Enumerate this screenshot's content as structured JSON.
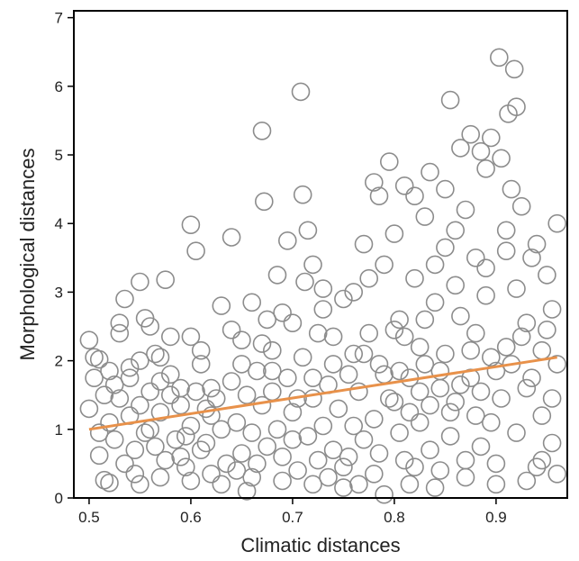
{
  "chart_data": {
    "type": "scatter",
    "title": "",
    "xlabel": "Climatic distances",
    "ylabel": "Morphological  distances",
    "xlim": [
      0.485,
      0.97
    ],
    "ylim": [
      0,
      7.1
    ],
    "xticks": [
      "0.5",
      "0.6",
      "0.7",
      "0.8",
      "0.9"
    ],
    "yticks": [
      "0",
      "1",
      "2",
      "3",
      "4",
      "5",
      "6",
      "7"
    ],
    "grid": false,
    "legend": "none",
    "marker": {
      "shape": "open-circle",
      "color": "#8c8c8c"
    },
    "points": [
      [
        0.5,
        2.3
      ],
      [
        0.505,
        2.05
      ],
      [
        0.51,
        2.02
      ],
      [
        0.5,
        1.3
      ],
      [
        0.51,
        0.62
      ],
      [
        0.515,
        0.26
      ],
      [
        0.52,
        0.22
      ],
      [
        0.525,
        1.65
      ],
      [
        0.53,
        2.55
      ],
      [
        0.53,
        2.4
      ],
      [
        0.535,
        2.9
      ],
      [
        0.54,
        1.9
      ],
      [
        0.545,
        0.35
      ],
      [
        0.55,
        3.15
      ],
      [
        0.555,
        2.62
      ],
      [
        0.56,
        2.5
      ],
      [
        0.56,
        1.0
      ],
      [
        0.565,
        2.1
      ],
      [
        0.57,
        1.7
      ],
      [
        0.575,
        3.18
      ],
      [
        0.58,
        1.5
      ],
      [
        0.59,
        0.6
      ],
      [
        0.595,
        0.9
      ],
      [
        0.6,
        3.98
      ],
      [
        0.6,
        2.35
      ],
      [
        0.605,
        3.6
      ],
      [
        0.61,
        1.95
      ],
      [
        0.615,
        0.8
      ],
      [
        0.62,
        1.2
      ],
      [
        0.63,
        2.8
      ],
      [
        0.64,
        3.8
      ],
      [
        0.645,
        0.4
      ],
      [
        0.65,
        2.3
      ],
      [
        0.655,
        0.1
      ],
      [
        0.66,
        2.85
      ],
      [
        0.665,
        0.5
      ],
      [
        0.67,
        5.35
      ],
      [
        0.672,
        4.32
      ],
      [
        0.675,
        2.6
      ],
      [
        0.68,
        1.55
      ],
      [
        0.685,
        3.25
      ],
      [
        0.69,
        2.7
      ],
      [
        0.695,
        3.75
      ],
      [
        0.7,
        0.85
      ],
      [
        0.705,
        1.45
      ],
      [
        0.708,
        5.92
      ],
      [
        0.71,
        4.42
      ],
      [
        0.712,
        3.15
      ],
      [
        0.715,
        3.9
      ],
      [
        0.72,
        3.4
      ],
      [
        0.725,
        2.4
      ],
      [
        0.73,
        3.05
      ],
      [
        0.735,
        0.3
      ],
      [
        0.74,
        1.95
      ],
      [
        0.75,
        2.9
      ],
      [
        0.755,
        0.6
      ],
      [
        0.76,
        2.1
      ],
      [
        0.765,
        0.2
      ],
      [
        0.77,
        3.7
      ],
      [
        0.775,
        3.2
      ],
      [
        0.78,
        4.6
      ],
      [
        0.785,
        4.4
      ],
      [
        0.79,
        0.05
      ],
      [
        0.795,
        4.9
      ],
      [
        0.8,
        3.85
      ],
      [
        0.805,
        2.6
      ],
      [
        0.81,
        4.55
      ],
      [
        0.815,
        0.2
      ],
      [
        0.82,
        4.4
      ],
      [
        0.825,
        2.2
      ],
      [
        0.83,
        4.1
      ],
      [
        0.835,
        4.75
      ],
      [
        0.84,
        3.4
      ],
      [
        0.845,
        0.4
      ],
      [
        0.85,
        4.5
      ],
      [
        0.855,
        5.8
      ],
      [
        0.86,
        3.9
      ],
      [
        0.865,
        5.1
      ],
      [
        0.87,
        4.2
      ],
      [
        0.875,
        5.3
      ],
      [
        0.88,
        1.2
      ],
      [
        0.885,
        5.05
      ],
      [
        0.89,
        4.8
      ],
      [
        0.895,
        5.25
      ],
      [
        0.9,
        0.5
      ],
      [
        0.903,
        6.42
      ],
      [
        0.905,
        4.95
      ],
      [
        0.91,
        3.6
      ],
      [
        0.912,
        5.6
      ],
      [
        0.915,
        4.5
      ],
      [
        0.918,
        6.25
      ],
      [
        0.92,
        5.7
      ],
      [
        0.925,
        4.25
      ],
      [
        0.93,
        2.55
      ],
      [
        0.935,
        3.5
      ],
      [
        0.94,
        0.45
      ],
      [
        0.945,
        1.2
      ],
      [
        0.95,
        2.45
      ],
      [
        0.955,
        0.8
      ],
      [
        0.96,
        4.0
      ],
      [
        0.96,
        1.95
      ],
      [
        0.955,
        2.75
      ],
      [
        0.945,
        0.55
      ],
      [
        0.94,
        3.7
      ],
      [
        0.93,
        1.6
      ],
      [
        0.92,
        0.95
      ],
      [
        0.91,
        2.2
      ],
      [
        0.9,
        1.85
      ],
      [
        0.895,
        1.1
      ],
      [
        0.89,
        2.95
      ],
      [
        0.885,
        0.75
      ],
      [
        0.88,
        2.4
      ],
      [
        0.875,
        1.75
      ],
      [
        0.87,
        0.3
      ],
      [
        0.865,
        2.65
      ],
      [
        0.86,
        1.4
      ],
      [
        0.855,
        0.9
      ],
      [
        0.85,
        2.1
      ],
      [
        0.845,
        1.6
      ],
      [
        0.84,
        2.85
      ],
      [
        0.835,
        0.7
      ],
      [
        0.83,
        1.95
      ],
      [
        0.825,
        1.1
      ],
      [
        0.82,
        0.45
      ],
      [
        0.815,
        1.75
      ],
      [
        0.81,
        2.35
      ],
      [
        0.805,
        0.95
      ],
      [
        0.8,
        1.4
      ],
      [
        0.79,
        1.8
      ],
      [
        0.785,
        0.65
      ],
      [
        0.78,
        1.15
      ],
      [
        0.775,
        2.4
      ],
      [
        0.77,
        0.85
      ],
      [
        0.765,
        1.55
      ],
      [
        0.76,
        1.05
      ],
      [
        0.755,
        1.8
      ],
      [
        0.75,
        0.45
      ],
      [
        0.745,
        1.3
      ],
      [
        0.74,
        0.7
      ],
      [
        0.735,
        1.65
      ],
      [
        0.73,
        1.05
      ],
      [
        0.725,
        0.55
      ],
      [
        0.72,
        1.45
      ],
      [
        0.715,
        0.9
      ],
      [
        0.71,
        2.05
      ],
      [
        0.705,
        0.4
      ],
      [
        0.7,
        1.25
      ],
      [
        0.695,
        1.75
      ],
      [
        0.69,
        0.6
      ],
      [
        0.685,
        1.0
      ],
      [
        0.68,
        2.15
      ],
      [
        0.675,
        0.75
      ],
      [
        0.67,
        1.35
      ],
      [
        0.665,
        1.85
      ],
      [
        0.66,
        0.95
      ],
      [
        0.655,
        1.5
      ],
      [
        0.65,
        0.65
      ],
      [
        0.645,
        1.1
      ],
      [
        0.64,
        1.7
      ],
      [
        0.635,
        0.5
      ],
      [
        0.63,
        1.0
      ],
      [
        0.625,
        1.45
      ],
      [
        0.62,
        0.35
      ],
      [
        0.615,
        1.3
      ],
      [
        0.61,
        0.7
      ],
      [
        0.605,
        1.55
      ],
      [
        0.6,
        1.05
      ],
      [
        0.595,
        0.45
      ],
      [
        0.59,
        1.35
      ],
      [
        0.585,
        0.85
      ],
      [
        0.58,
        1.8
      ],
      [
        0.575,
        0.55
      ],
      [
        0.57,
        1.25
      ],
      [
        0.565,
        0.75
      ],
      [
        0.56,
        1.55
      ],
      [
        0.555,
        0.95
      ],
      [
        0.55,
        1.35
      ],
      [
        0.545,
        0.7
      ],
      [
        0.54,
        1.2
      ],
      [
        0.535,
        0.5
      ],
      [
        0.53,
        1.45
      ],
      [
        0.525,
        0.85
      ],
      [
        0.52,
        1.1
      ],
      [
        0.515,
        1.5
      ],
      [
        0.51,
        0.95
      ],
      [
        0.505,
        1.75
      ],
      [
        0.54,
        1.75
      ],
      [
        0.57,
        2.05
      ],
      [
        0.59,
        1.6
      ],
      [
        0.62,
        1.6
      ],
      [
        0.65,
        1.95
      ],
      [
        0.68,
        1.85
      ],
      [
        0.72,
        1.75
      ],
      [
        0.74,
        2.35
      ],
      [
        0.77,
        2.1
      ],
      [
        0.8,
        2.45
      ],
      [
        0.83,
        2.6
      ],
      [
        0.86,
        3.1
      ],
      [
        0.89,
        3.35
      ],
      [
        0.92,
        3.05
      ],
      [
        0.95,
        3.25
      ],
      [
        0.91,
        3.9
      ],
      [
        0.88,
        3.5
      ],
      [
        0.85,
        3.65
      ],
      [
        0.82,
        3.2
      ],
      [
        0.79,
        3.4
      ],
      [
        0.76,
        3.0
      ],
      [
        0.73,
        2.75
      ],
      [
        0.7,
        2.55
      ],
      [
        0.67,
        2.25
      ],
      [
        0.64,
        2.45
      ],
      [
        0.61,
        2.15
      ],
      [
        0.58,
        2.35
      ],
      [
        0.55,
        2.0
      ],
      [
        0.52,
        1.85
      ],
      [
        0.96,
        0.35
      ],
      [
        0.93,
        0.25
      ],
      [
        0.9,
        0.2
      ],
      [
        0.87,
        0.55
      ],
      [
        0.84,
        0.15
      ],
      [
        0.81,
        0.55
      ],
      [
        0.78,
        0.35
      ],
      [
        0.75,
        0.15
      ],
      [
        0.72,
        0.2
      ],
      [
        0.69,
        0.25
      ],
      [
        0.66,
        0.3
      ],
      [
        0.63,
        0.2
      ],
      [
        0.6,
        0.25
      ],
      [
        0.57,
        0.3
      ],
      [
        0.55,
        0.2
      ],
      [
        0.835,
        1.35
      ],
      [
        0.845,
        1.85
      ],
      [
        0.855,
        1.25
      ],
      [
        0.865,
        1.65
      ],
      [
        0.875,
        2.15
      ],
      [
        0.885,
        1.55
      ],
      [
        0.895,
        2.05
      ],
      [
        0.905,
        1.45
      ],
      [
        0.915,
        1.95
      ],
      [
        0.925,
        2.35
      ],
      [
        0.935,
        1.75
      ],
      [
        0.945,
        2.15
      ],
      [
        0.955,
        1.45
      ],
      [
        0.825,
        1.55
      ],
      [
        0.815,
        1.25
      ],
      [
        0.805,
        1.85
      ],
      [
        0.795,
        1.45
      ],
      [
        0.785,
        1.95
      ]
    ],
    "trendline": {
      "x": [
        0.5,
        0.96
      ],
      "y": [
        1.0,
        2.05
      ],
      "color": "#e8914a"
    }
  }
}
